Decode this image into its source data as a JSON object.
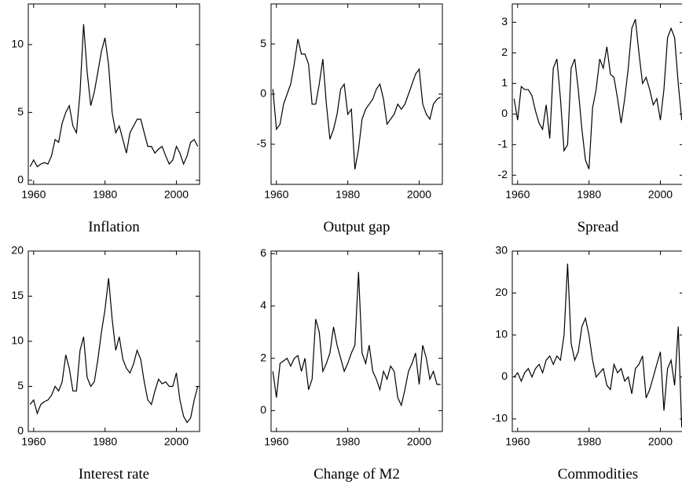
{
  "chart_data": [
    {
      "type": "line",
      "title": "Inflation",
      "x": [
        1959,
        1960,
        1961,
        1962,
        1963,
        1964,
        1965,
        1966,
        1967,
        1968,
        1969,
        1970,
        1971,
        1972,
        1973,
        1974,
        1975,
        1976,
        1977,
        1978,
        1979,
        1980,
        1981,
        1982,
        1983,
        1984,
        1985,
        1986,
        1987,
        1988,
        1989,
        1990,
        1991,
        1992,
        1993,
        1994,
        1995,
        1996,
        1997,
        1998,
        1999,
        2000,
        2001,
        2002,
        2003,
        2004,
        2005,
        2006
      ],
      "values": [
        1.0,
        1.5,
        1.0,
        1.2,
        1.3,
        1.2,
        1.8,
        3.0,
        2.8,
        4.2,
        5.0,
        5.5,
        4.0,
        3.5,
        6.5,
        11.5,
        8.0,
        5.5,
        6.5,
        8.0,
        9.5,
        10.5,
        8.5,
        5.0,
        3.5,
        4.0,
        3.0,
        2.0,
        3.5,
        4.0,
        4.5,
        4.5,
        3.5,
        2.5,
        2.5,
        2.0,
        2.3,
        2.5,
        1.8,
        1.2,
        1.5,
        2.5,
        2.0,
        1.2,
        1.8,
        2.8,
        3.0,
        2.5
      ],
      "xlim": [
        1958.5,
        2006.5
      ],
      "ylim": [
        -0.3,
        13
      ],
      "xticks": [
        1960,
        1980,
        2000
      ],
      "yticks": [
        0,
        5,
        10
      ],
      "color": "#000000"
    },
    {
      "type": "line",
      "title": "Output gap",
      "x": [
        1959,
        1960,
        1961,
        1962,
        1963,
        1964,
        1965,
        1966,
        1967,
        1968,
        1969,
        1970,
        1971,
        1972,
        1973,
        1974,
        1975,
        1976,
        1977,
        1978,
        1979,
        1980,
        1981,
        1982,
        1983,
        1984,
        1985,
        1986,
        1987,
        1988,
        1989,
        1990,
        1991,
        1992,
        1993,
        1994,
        1995,
        1996,
        1997,
        1998,
        1999,
        2000,
        2001,
        2002,
        2003,
        2004,
        2005,
        2006
      ],
      "values": [
        0.5,
        -3.5,
        -3,
        -1,
        0,
        1,
        3,
        5.5,
        4,
        4,
        3,
        -1,
        -1,
        1,
        3.5,
        -1,
        -4.5,
        -3.5,
        -2,
        0.5,
        1,
        -2,
        -1.5,
        -7.5,
        -5.5,
        -2.5,
        -1.5,
        -1,
        -0.5,
        0.5,
        1,
        -0.5,
        -3,
        -2.5,
        -2,
        -1,
        -1.5,
        -1,
        0,
        1,
        2,
        2.5,
        -1,
        -2,
        -2.5,
        -1,
        -0.5,
        -0.3
      ],
      "xlim": [
        1958.5,
        2006.5
      ],
      "ylim": [
        -9,
        9
      ],
      "xticks": [
        1960,
        1980,
        2000
      ],
      "yticks": [
        -5,
        0,
        5
      ],
      "color": "#000000"
    },
    {
      "type": "line",
      "title": "Spread",
      "x": [
        1959,
        1960,
        1961,
        1962,
        1963,
        1964,
        1965,
        1966,
        1967,
        1968,
        1969,
        1970,
        1971,
        1972,
        1973,
        1974,
        1975,
        1976,
        1977,
        1978,
        1979,
        1980,
        1981,
        1982,
        1983,
        1984,
        1985,
        1986,
        1987,
        1988,
        1989,
        1990,
        1991,
        1992,
        1993,
        1994,
        1995,
        1996,
        1997,
        1998,
        1999,
        2000,
        2001,
        2002,
        2003,
        2004,
        2005,
        2006
      ],
      "values": [
        0.5,
        -0.2,
        0.9,
        0.8,
        0.8,
        0.6,
        0.1,
        -0.3,
        -0.5,
        0.3,
        -0.8,
        1.5,
        1.8,
        0.5,
        -1.2,
        -1.0,
        1.5,
        1.8,
        0.8,
        -0.5,
        -1.5,
        -1.8,
        0.2,
        0.8,
        1.8,
        1.5,
        2.2,
        1.3,
        1.2,
        0.5,
        -0.3,
        0.5,
        1.5,
        2.8,
        3.1,
        2.0,
        1.0,
        1.2,
        0.8,
        0.3,
        0.5,
        -0.2,
        0.8,
        2.5,
        2.8,
        2.5,
        1.0,
        -0.2
      ],
      "xlim": [
        1958.5,
        2006.5
      ],
      "ylim": [
        -2.3,
        3.6
      ],
      "xticks": [
        1960,
        1980,
        2000
      ],
      "yticks": [
        -2,
        -1,
        0,
        1,
        2,
        3
      ],
      "color": "#000000"
    },
    {
      "type": "line",
      "title": "Interest rate",
      "x": [
        1959,
        1960,
        1961,
        1962,
        1963,
        1964,
        1965,
        1966,
        1967,
        1968,
        1969,
        1970,
        1971,
        1972,
        1973,
        1974,
        1975,
        1976,
        1977,
        1978,
        1979,
        1980,
        1981,
        1982,
        1983,
        1984,
        1985,
        1986,
        1987,
        1988,
        1989,
        1990,
        1991,
        1992,
        1993,
        1994,
        1995,
        1996,
        1997,
        1998,
        1999,
        2000,
        2001,
        2002,
        2003,
        2004,
        2005,
        2006
      ],
      "values": [
        3,
        3.5,
        2,
        3,
        3.3,
        3.5,
        4,
        5,
        4.5,
        5.5,
        8.5,
        7,
        4.5,
        4.5,
        9,
        10.5,
        6,
        5,
        5.5,
        8,
        11,
        13.5,
        17,
        12.5,
        9,
        10.5,
        8,
        7,
        6.5,
        7.5,
        9,
        8,
        5.5,
        3.5,
        3,
        4.5,
        5.8,
        5.3,
        5.5,
        5,
        5,
        6.5,
        3.5,
        1.7,
        1,
        1.5,
        3.5,
        5
      ],
      "xlim": [
        1958.5,
        2006.5
      ],
      "ylim": [
        0,
        20
      ],
      "xticks": [
        1960,
        1980,
        2000
      ],
      "yticks": [
        0,
        5,
        10,
        15,
        20
      ],
      "color": "#000000"
    },
    {
      "type": "line",
      "title": "Change of M2",
      "x": [
        1959,
        1960,
        1961,
        1962,
        1963,
        1964,
        1965,
        1966,
        1967,
        1968,
        1969,
        1970,
        1971,
        1972,
        1973,
        1974,
        1975,
        1976,
        1977,
        1978,
        1979,
        1980,
        1981,
        1982,
        1983,
        1984,
        1985,
        1986,
        1987,
        1988,
        1989,
        1990,
        1991,
        1992,
        1993,
        1994,
        1995,
        1996,
        1997,
        1998,
        1999,
        2000,
        2001,
        2002,
        2003,
        2004,
        2005,
        2006
      ],
      "values": [
        1.5,
        0.5,
        1.8,
        1.9,
        2,
        1.7,
        2,
        2.1,
        1.5,
        2,
        0.8,
        1.2,
        3.5,
        3,
        1.5,
        1.8,
        2.2,
        3.2,
        2.5,
        2,
        1.5,
        1.8,
        2.2,
        2.5,
        5.3,
        2.2,
        1.8,
        2.5,
        1.5,
        1.2,
        0.8,
        1.5,
        1.2,
        1.7,
        1.5,
        0.5,
        0.2,
        0.8,
        1.5,
        1.8,
        2.2,
        1.0,
        2.5,
        2,
        1.2,
        1.5,
        1,
        1
      ],
      "xlim": [
        1958.5,
        2006.5
      ],
      "ylim": [
        -0.8,
        6.1
      ],
      "xticks": [
        1960,
        1980,
        2000
      ],
      "yticks": [
        0,
        2,
        4,
        6
      ],
      "color": "#000000"
    },
    {
      "type": "line",
      "title": "Commodities",
      "x": [
        1959,
        1960,
        1961,
        1962,
        1963,
        1964,
        1965,
        1966,
        1967,
        1968,
        1969,
        1970,
        1971,
        1972,
        1973,
        1974,
        1975,
        1976,
        1977,
        1978,
        1979,
        1980,
        1981,
        1982,
        1983,
        1984,
        1985,
        1986,
        1987,
        1988,
        1989,
        1990,
        1991,
        1992,
        1993,
        1994,
        1995,
        1996,
        1997,
        1998,
        1999,
        2000,
        2001,
        2002,
        2003,
        2004,
        2005,
        2006
      ],
      "values": [
        0,
        1,
        -1,
        1,
        2,
        0,
        2,
        3,
        1,
        4,
        5,
        3,
        5,
        4,
        10,
        27,
        8,
        4,
        6,
        12,
        14,
        10,
        4,
        0,
        1,
        2,
        -2,
        -3,
        3,
        1,
        2,
        -1,
        0,
        -4,
        2,
        3,
        5,
        -5,
        -3,
        0,
        3,
        6,
        -8,
        2,
        4,
        -2,
        12,
        -12
      ],
      "xlim": [
        1958.5,
        2006.5
      ],
      "ylim": [
        -13,
        30
      ],
      "xticks": [
        1960,
        1980,
        2000
      ],
      "yticks": [
        -10,
        0,
        10,
        20,
        30
      ],
      "color": "#000000"
    }
  ]
}
